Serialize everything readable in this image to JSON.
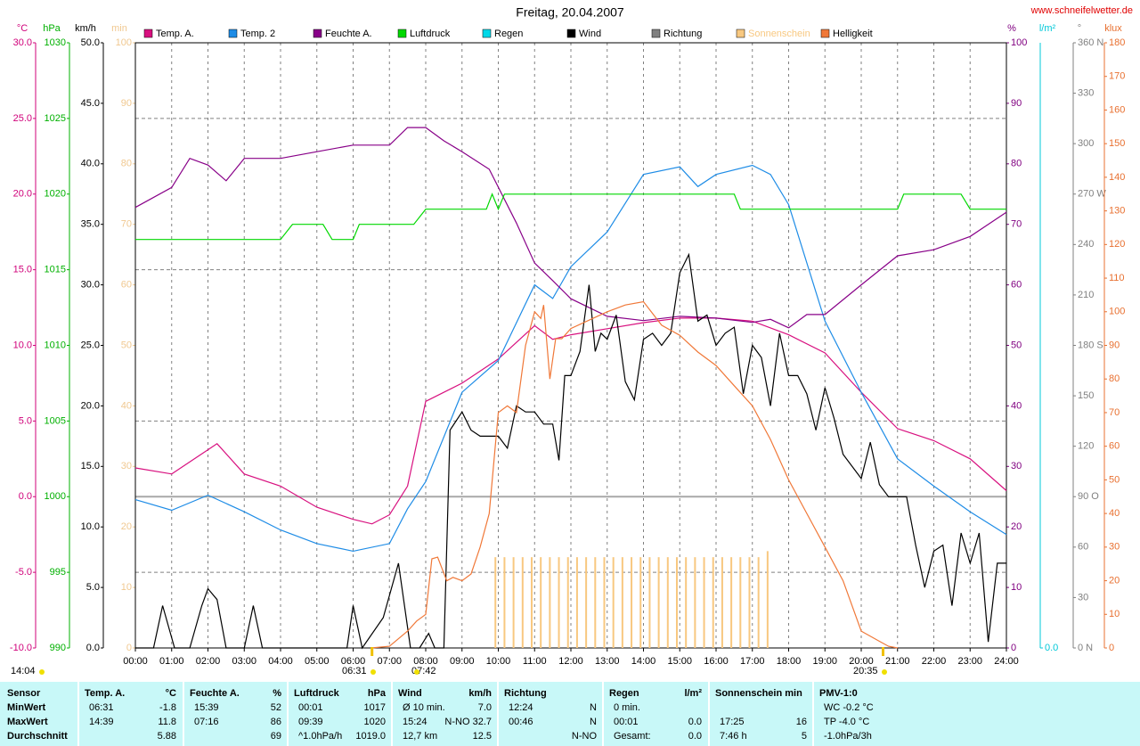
{
  "chart_data": {
    "type": "line",
    "title": "Freitag, 20.04.2007",
    "site": "www.schneifelwetter.de",
    "xlim": [
      0,
      24
    ],
    "xticks": [
      {
        "value": 0,
        "label": "00:00"
      },
      {
        "value": 1,
        "label": "01:00"
      },
      {
        "value": 2,
        "label": "02:00"
      },
      {
        "value": 3,
        "label": "03:00"
      },
      {
        "value": 4,
        "label": "04:00"
      },
      {
        "value": 5,
        "label": "05:00"
      },
      {
        "value": 6,
        "label": "06:00"
      },
      {
        "value": 7,
        "label": "07:00"
      },
      {
        "value": 8,
        "label": "08:00"
      },
      {
        "value": 9,
        "label": "09:00"
      },
      {
        "value": 10,
        "label": "10:00"
      },
      {
        "value": 11,
        "label": "11:00"
      },
      {
        "value": 12,
        "label": "12:00"
      },
      {
        "value": 13,
        "label": "13:00"
      },
      {
        "value": 14,
        "label": "14:00"
      },
      {
        "value": 15,
        "label": "15:00"
      },
      {
        "value": 16,
        "label": "16:00"
      },
      {
        "value": 17,
        "label": "17:00"
      },
      {
        "value": 18,
        "label": "18:00"
      },
      {
        "value": 19,
        "label": "19:00"
      },
      {
        "value": 20,
        "label": "20:00"
      },
      {
        "value": 21,
        "label": "21:00"
      },
      {
        "value": 22,
        "label": "22:00"
      },
      {
        "value": 23,
        "label": "23:00"
      },
      {
        "value": 24,
        "label": "24:00"
      }
    ],
    "grid": true,
    "zero_line": true,
    "axes": [
      {
        "unit": "°C",
        "color": "#d0007a",
        "lim": [
          -10,
          30
        ],
        "ticks": [
          {
            "value": -10,
            "label": "-10.0"
          },
          {
            "value": -5,
            "label": "-5.0"
          },
          {
            "value": 0,
            "label": "0.0"
          },
          {
            "value": 5,
            "label": "5.0"
          },
          {
            "value": 10,
            "label": "10.0"
          },
          {
            "value": 15,
            "label": "15.0"
          },
          {
            "value": 20,
            "label": "20.0"
          },
          {
            "value": 25,
            "label": "25.0"
          },
          {
            "value": 30,
            "label": "30.0"
          }
        ]
      },
      {
        "unit": "hPa",
        "color": "#00b000",
        "lim": [
          990,
          1030
        ],
        "ticks": [
          990,
          995,
          1000,
          1005,
          1010,
          1015,
          1020,
          1025,
          1030
        ]
      },
      {
        "unit": "km/h",
        "color": "#000000",
        "lim": [
          0,
          50
        ],
        "ticks": [
          {
            "value": 0,
            "label": "0.0"
          },
          {
            "value": 5,
            "label": "5.0"
          },
          {
            "value": 10,
            "label": "10.0"
          },
          {
            "value": 15,
            "label": "15.0"
          },
          {
            "value": 20,
            "label": "20.0"
          },
          {
            "value": 25,
            "label": "25.0"
          },
          {
            "value": 30,
            "label": "30.0"
          },
          {
            "value": 35,
            "label": "35.0"
          },
          {
            "value": 40,
            "label": "40.0"
          },
          {
            "value": 45,
            "label": "45.0"
          },
          {
            "value": 50,
            "label": "50.0"
          }
        ]
      },
      {
        "unit": "min",
        "color": "#f0c890",
        "lim": [
          0,
          100
        ],
        "ticks": [
          0,
          10,
          20,
          30,
          40,
          50,
          60,
          70,
          80,
          90,
          100
        ]
      },
      {
        "unit": "%",
        "color": "#800080",
        "lim": [
          0,
          100
        ],
        "ticks": [
          0,
          10,
          20,
          30,
          40,
          50,
          60,
          70,
          80,
          90,
          100
        ]
      },
      {
        "unit": "l/m²",
        "color": "#00c8d8",
        "lim": [
          0,
          10
        ],
        "ticks": [
          {
            "value": 0,
            "label": "0.0"
          }
        ]
      },
      {
        "unit": "°",
        "color": "#808080",
        "lim": [
          0,
          360
        ],
        "ticks": [
          {
            "value": 0,
            "label": "0 N"
          },
          {
            "value": 30,
            "label": "30"
          },
          {
            "value": 60,
            "label": "60"
          },
          {
            "value": 90,
            "label": "90 O"
          },
          {
            "value": 120,
            "label": "120"
          },
          {
            "value": 150,
            "label": "150"
          },
          {
            "value": 180,
            "label": "180 S"
          },
          {
            "value": 210,
            "label": "210"
          },
          {
            "value": 240,
            "label": "240"
          },
          {
            "value": 270,
            "label": "270 W"
          },
          {
            "value": 300,
            "label": "300"
          },
          {
            "value": 330,
            "label": "330"
          },
          {
            "value": 360,
            "label": "360 N"
          }
        ]
      },
      {
        "unit": "klux",
        "color": "#e87030",
        "lim": [
          0,
          180
        ],
        "ticks": [
          0,
          10,
          20,
          30,
          40,
          50,
          60,
          70,
          80,
          90,
          100,
          110,
          120,
          130,
          140,
          150,
          160,
          170,
          180
        ]
      }
    ],
    "series": [
      {
        "name": "Temp. A.",
        "color": "#d8107f",
        "axis": "°C",
        "x": [
          0,
          1,
          2,
          2.25,
          3,
          4,
          5,
          6,
          6.52,
          7,
          7.5,
          8,
          9,
          10,
          11,
          11.5,
          12,
          13,
          14,
          15,
          16,
          17,
          18,
          19,
          20,
          21,
          22,
          23,
          24
        ],
        "values": [
          1.9,
          1.5,
          3.1,
          3.5,
          1.5,
          0.7,
          -0.7,
          -1.5,
          -1.8,
          -1.2,
          0.7,
          6.3,
          7.5,
          9.1,
          11.3,
          10.4,
          10.7,
          11.1,
          11.5,
          11.8,
          11.8,
          11.6,
          10.7,
          9.5,
          6.9,
          4.5,
          3.7,
          2.5,
          0.4
        ]
      },
      {
        "name": "Temp. 2",
        "color": "#1e8ce6",
        "axis": "°C",
        "x": [
          0,
          1,
          2,
          3,
          4,
          5,
          6,
          7,
          7.5,
          8,
          9,
          10,
          11,
          11.5,
          12,
          13,
          14,
          15,
          15.5,
          16,
          17,
          17.5,
          18,
          19,
          20,
          21,
          22,
          23,
          24
        ],
        "values": [
          -0.2,
          -0.9,
          0.1,
          -1.0,
          -2.2,
          -3.1,
          -3.6,
          -3.1,
          -0.8,
          1.0,
          6.9,
          9.0,
          14.0,
          13.1,
          15.2,
          17.5,
          21.3,
          21.8,
          20.5,
          21.3,
          21.9,
          21.3,
          19.3,
          11.6,
          6.9,
          2.5,
          0.7,
          -1.0,
          -2.5
        ]
      },
      {
        "name": "Feuchte A.",
        "color": "#880088",
        "axis": "%",
        "x": [
          0,
          1,
          1.5,
          2,
          2.5,
          3,
          4,
          5,
          6,
          7,
          7.5,
          8,
          8.5,
          9,
          9.75,
          10.5,
          11,
          11.5,
          12,
          13,
          14,
          15,
          16,
          17,
          17.5,
          18,
          18.5,
          19,
          20,
          21,
          22,
          23,
          24
        ],
        "values": [
          72.8,
          76.1,
          80.9,
          79.8,
          77.2,
          80.9,
          80.9,
          82,
          83.1,
          83.1,
          86,
          86,
          83.8,
          82,
          79.1,
          70.2,
          63.6,
          60.7,
          57.7,
          54.8,
          54.1,
          54.8,
          54.5,
          53.8,
          54.3,
          52.9,
          55.1,
          55.1,
          60,
          64.8,
          65.8,
          68,
          72
        ]
      },
      {
        "name": "Luftdruck",
        "color": "#00d800",
        "axis": "hPa",
        "x": [
          0,
          4,
          4.33,
          5.17,
          5.42,
          6,
          6.17,
          7.67,
          8,
          9.67,
          9.83,
          10,
          10.17,
          16.5,
          16.67,
          21,
          21.17,
          22.75,
          23,
          24
        ],
        "values": [
          1017,
          1017,
          1018,
          1018,
          1017,
          1017,
          1018,
          1018,
          1019,
          1019,
          1020,
          1019,
          1020,
          1020,
          1019,
          1019,
          1020,
          1020,
          1019,
          1019
        ]
      },
      {
        "name": "Regen",
        "color": "#00d8e8",
        "axis": "l/m²"
      },
      {
        "name": "Wind",
        "color": "#000000",
        "axis": "km/h",
        "x": [
          0,
          0.5,
          0.75,
          1.08,
          1.5,
          1.83,
          2,
          2.25,
          2.5,
          3,
          3.25,
          3.5,
          5.83,
          6,
          6.25,
          6.83,
          7.25,
          7.58,
          7.83,
          8.08,
          8.25,
          8.5,
          8.67,
          9,
          9.25,
          9.5,
          10,
          10.25,
          10.5,
          10.75,
          11,
          11.25,
          11.5,
          11.67,
          11.83,
          12,
          12.25,
          12.5,
          12.67,
          12.83,
          13,
          13.25,
          13.5,
          13.75,
          14,
          14.25,
          14.5,
          14.75,
          15,
          15.25,
          15.5,
          15.75,
          16,
          16.25,
          16.5,
          16.75,
          17,
          17.25,
          17.5,
          17.75,
          18,
          18.25,
          18.5,
          18.75,
          19,
          19.25,
          19.5,
          20,
          20.25,
          20.5,
          20.75,
          21,
          21.25,
          21.5,
          21.75,
          22,
          22.25,
          22.5,
          22.75,
          23,
          23.25,
          23.5,
          23.75,
          24
        ],
        "values": [
          0,
          0,
          3.5,
          0,
          0,
          3.5,
          4.9,
          4,
          0,
          0,
          3.5,
          0,
          0,
          3.5,
          0,
          2.5,
          7,
          0,
          0,
          1.2,
          0,
          0,
          18,
          19.5,
          18,
          17.5,
          17.5,
          16.5,
          20,
          19.5,
          19.5,
          18.5,
          18.5,
          15.5,
          22.5,
          22.5,
          24.5,
          30,
          24.5,
          26,
          25.5,
          27.5,
          22,
          20.5,
          25.5,
          26,
          25,
          26,
          31,
          32.5,
          27,
          27.5,
          25,
          26,
          26.5,
          21,
          25,
          24,
          20,
          26,
          22.5,
          22.5,
          21,
          18,
          21.5,
          19,
          16,
          14,
          17,
          13.5,
          12.5,
          12.5,
          12.5,
          8.5,
          5,
          8,
          8.5,
          3.5,
          9.5,
          7,
          9.5,
          0.5,
          7,
          7
        ]
      },
      {
        "name": "Richtung",
        "color": "#808080",
        "axis": "°"
      },
      {
        "name": "Sonnenschein",
        "color": "#f8c880",
        "axis": "min",
        "type": "bar",
        "x": [
          9.92,
          10.17,
          10.42,
          10.67,
          10.92,
          11.17,
          11.42,
          11.67,
          11.92,
          12.17,
          12.42,
          12.67,
          12.92,
          13.17,
          13.42,
          13.67,
          13.92,
          14.17,
          14.42,
          14.67,
          14.92,
          15.17,
          15.42,
          15.67,
          15.92,
          16.17,
          16.42,
          16.67,
          16.92,
          17.17,
          17.42
        ],
        "values": [
          15,
          15,
          15,
          15,
          15,
          15,
          15,
          15,
          15,
          15,
          15,
          15,
          15,
          15,
          15,
          15,
          15,
          15,
          15,
          15,
          15,
          15,
          15,
          15,
          15,
          15,
          15,
          15,
          15,
          15,
          16
        ]
      },
      {
        "name": "Helligkeit",
        "color": "#f07838",
        "axis": "klux",
        "x": [
          6.5,
          7,
          7.5,
          7.75,
          8,
          8.17,
          8.33,
          8.58,
          8.75,
          9,
          9.25,
          9.5,
          9.75,
          10,
          10.25,
          10.5,
          10.75,
          11,
          11.17,
          11.25,
          11.42,
          11.58,
          11.75,
          12,
          13,
          13.5,
          14,
          14.5,
          15,
          15.5,
          16,
          16.5,
          17,
          17.5,
          18,
          18.5,
          19,
          19.5,
          20,
          20.5,
          20.75,
          21
        ],
        "values": [
          0,
          0.5,
          5,
          8,
          10,
          26.5,
          27,
          20,
          21,
          20,
          22,
          30,
          40,
          70,
          72,
          70,
          90,
          100,
          98,
          102,
          80,
          92,
          92,
          95,
          100,
          102,
          103,
          96,
          93,
          88,
          84,
          78,
          72,
          62,
          50,
          40,
          30,
          20,
          5,
          2,
          0.5,
          0
        ]
      }
    ],
    "annotations": [
      "14:04",
      "06:31",
      "07:42",
      "20:35"
    ]
  },
  "table": {
    "row_labels": [
      "Sensor",
      "MinWert",
      "MaxWert",
      "Durchschnitt"
    ],
    "columns": [
      {
        "header": "Temp. A.",
        "unit": "°C",
        "rows": [
          [
            "06:31",
            "-1.8"
          ],
          [
            "14:39",
            "11.8"
          ],
          [
            null,
            "5.88"
          ]
        ]
      },
      {
        "header": "Feuchte A.",
        "unit": "%",
        "rows": [
          [
            "15:39",
            "52"
          ],
          [
            "07:16",
            "86"
          ],
          [
            null,
            "69"
          ]
        ]
      },
      {
        "header": "Luftdruck",
        "unit": "hPa",
        "rows": [
          [
            "00:01",
            "1017"
          ],
          [
            "09:39",
            "1020"
          ],
          [
            "^1.0hPa/h",
            "1019.0"
          ]
        ]
      },
      {
        "header": "Wind",
        "unit": "km/h",
        "rows": [
          [
            "Ø 10 min.",
            "7.0"
          ],
          [
            "15:24",
            "N-NO 32.7"
          ],
          [
            "12,7 km",
            "12.5"
          ]
        ]
      },
      {
        "header": "Richtung",
        "rows": [
          [
            "12:24",
            "N"
          ],
          [
            "00:46",
            "N"
          ],
          [
            null,
            "N-NO"
          ]
        ]
      },
      {
        "header": "Regen",
        "unit": "l/m²",
        "rows": [
          [
            "0 min.",
            null
          ],
          [
            "00:01",
            "0.0"
          ],
          [
            "Gesamt:",
            "0.0"
          ]
        ]
      },
      {
        "header": "Sonnenschein min",
        "rows": [
          [
            null,
            null
          ],
          [
            "17:25",
            "16"
          ],
          [
            "7:46 h",
            "5"
          ]
        ]
      },
      {
        "header": "PMV-1:0",
        "rows": [
          [
            "WC -0.2 °C",
            null
          ],
          [
            "TP -4.0 °C",
            null
          ],
          [
            "-1.0hPa/3h",
            null
          ]
        ]
      }
    ]
  }
}
